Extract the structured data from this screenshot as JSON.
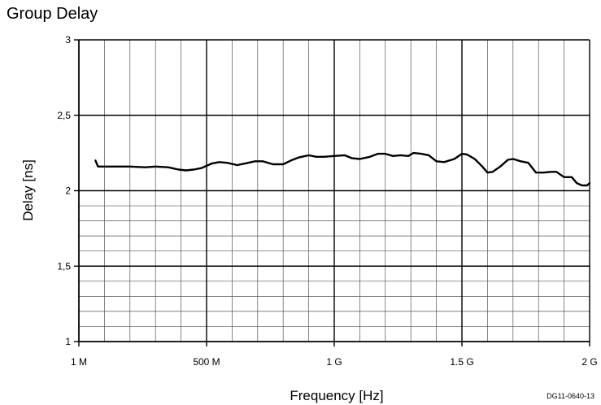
{
  "chart_data": {
    "type": "line",
    "title": "Group Delay",
    "xlabel": "Frequency [Hz]",
    "ylabel": "Delay [ns]",
    "xlim": [
      0,
      2000000000
    ],
    "ylim": [
      1,
      3
    ],
    "x_ticks": [
      {
        "value": 0,
        "label": "1 M"
      },
      {
        "value": 500000000,
        "label": "500 M"
      },
      {
        "value": 1000000000,
        "label": "1 G"
      },
      {
        "value": 1500000000,
        "label": "1.5 G"
      },
      {
        "value": 2000000000,
        "label": "2 G"
      }
    ],
    "y_ticks": [
      {
        "value": 1,
        "label": "1"
      },
      {
        "value": 1.5,
        "label": "1,5"
      },
      {
        "value": 2,
        "label": "2"
      },
      {
        "value": 2.5,
        "label": "2,5"
      },
      {
        "value": 3,
        "label": "3"
      }
    ],
    "grid": true,
    "series": [
      {
        "x": [
          65000000,
          75000000,
          90000000,
          150000000,
          200000000,
          260000000,
          300000000,
          350000000,
          390000000,
          420000000,
          450000000,
          480000000,
          500000000,
          520000000,
          550000000,
          580000000,
          620000000,
          650000000,
          690000000,
          720000000,
          760000000,
          800000000,
          830000000,
          860000000,
          900000000,
          930000000,
          960000000,
          1000000000,
          1040000000,
          1070000000,
          1100000000,
          1140000000,
          1170000000,
          1200000000,
          1230000000,
          1260000000,
          1290000000,
          1310000000,
          1340000000,
          1370000000,
          1400000000,
          1430000000,
          1470000000,
          1500000000,
          1520000000,
          1550000000,
          1580000000,
          1600000000,
          1620000000,
          1650000000,
          1680000000,
          1700000000,
          1730000000,
          1760000000,
          1790000000,
          1820000000,
          1850000000,
          1870000000,
          1900000000,
          1930000000,
          1950000000,
          1970000000,
          1990000000,
          2000000000
        ],
        "y": [
          2.2,
          2.16,
          2.16,
          2.16,
          2.16,
          2.155,
          2.16,
          2.155,
          2.14,
          2.135,
          2.14,
          2.15,
          2.165,
          2.18,
          2.19,
          2.185,
          2.17,
          2.18,
          2.195,
          2.195,
          2.175,
          2.175,
          2.2,
          2.22,
          2.235,
          2.225,
          2.225,
          2.23,
          2.235,
          2.215,
          2.21,
          2.225,
          2.245,
          2.245,
          2.23,
          2.235,
          2.23,
          2.25,
          2.245,
          2.235,
          2.195,
          2.19,
          2.21,
          2.245,
          2.24,
          2.21,
          2.16,
          2.12,
          2.125,
          2.16,
          2.205,
          2.21,
          2.195,
          2.185,
          2.12,
          2.12,
          2.125,
          2.125,
          2.09,
          2.09,
          2.05,
          2.035,
          2.035,
          2.05
        ]
      }
    ]
  },
  "code": "DG11-0640-13"
}
